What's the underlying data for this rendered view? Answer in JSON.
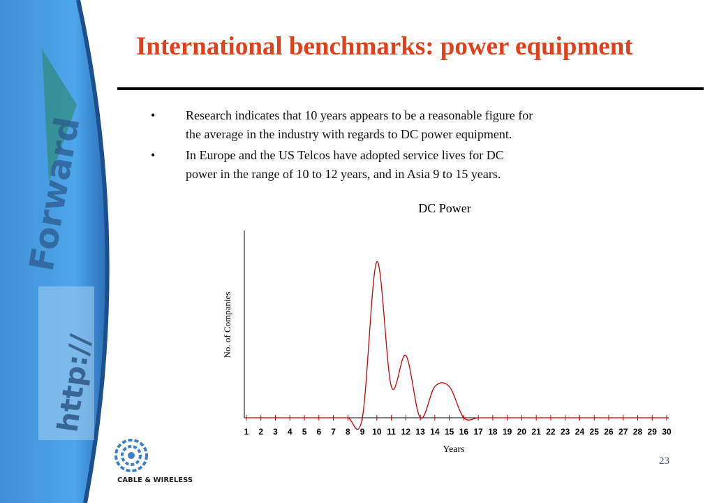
{
  "header": {
    "title": "International benchmarks:  power equipment"
  },
  "bullets": [
    [
      "Research indicates that 10 years appears to be a reasonable figure for",
      "the average in the industry with regards to DC power equipment."
    ],
    [
      "In Europe and the US Telcos have adopted service lives for DC",
      "power in the range of  10 to 12 years, and in Asia 9  to 15 years."
    ]
  ],
  "banner": {
    "words": [
      "Forward",
      "http://"
    ]
  },
  "logo": {
    "text": "CABLE & WIRELESS"
  },
  "page_number": "23",
  "chart_data": {
    "type": "line",
    "title": "DC Power",
    "x_label": "Years",
    "y_label": "No. of Companies",
    "x": [
      1,
      2,
      3,
      4,
      5,
      6,
      7,
      8,
      9,
      10,
      11,
      12,
      13,
      14,
      15,
      16,
      17,
      18,
      19,
      20,
      21,
      22,
      23,
      24,
      25,
      26,
      27,
      28,
      29,
      30
    ],
    "values": [
      0,
      0,
      0,
      0,
      0,
      0,
      0,
      0,
      0,
      5,
      1,
      2,
      0,
      1,
      1,
      0,
      0,
      0,
      0,
      0,
      0,
      0,
      0,
      0,
      0,
      0,
      0,
      0,
      0,
      0
    ],
    "color": "#cc0000",
    "xlim": [
      1,
      30
    ],
    "xticks": [
      1,
      2,
      3,
      4,
      5,
      6,
      7,
      8,
      9,
      10,
      11,
      12,
      13,
      14,
      15,
      16,
      17,
      18,
      19,
      20,
      21,
      22,
      23,
      24,
      25,
      26,
      27,
      28,
      29,
      30
    ],
    "ylim": [
      0,
      6
    ]
  }
}
